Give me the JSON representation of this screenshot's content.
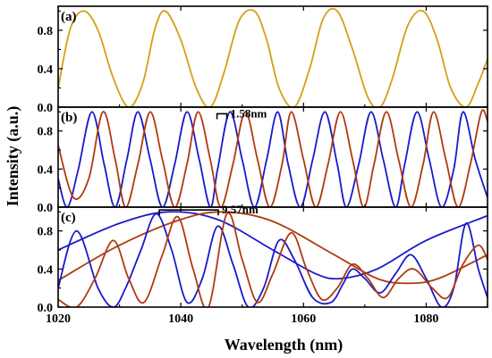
{
  "chart_data": {
    "type": "line",
    "xlabel": "Wavelength (nm)",
    "ylabel": "Intensity (a.u.)",
    "xlim": [
      1020,
      1090
    ],
    "x_ticks": [
      1020,
      1040,
      1060,
      1080
    ],
    "x_tick_labels": [
      "1020",
      "1040",
      "1060",
      "1080"
    ],
    "y_ticks": [
      0.0,
      0.4,
      0.8
    ],
    "y_tick_labels": [
      "0.0",
      "0.4",
      "0.8"
    ],
    "colors": {
      "gold": "#d4a017",
      "blue": "#1a1acc",
      "red": "#b03a10"
    },
    "panels": [
      {
        "label": "(a)",
        "ylim": [
          0,
          1.05
        ],
        "series": [
          {
            "color": "gold",
            "x": [
              1020,
              1022,
              1024.2,
              1026.5,
              1029,
              1031.5,
              1033.8,
              1035.8,
              1037.5,
              1040,
              1042.5,
              1044.8,
              1047,
              1049.5,
              1052,
              1054,
              1056,
              1058.5,
              1061,
              1063.2,
              1065.5,
              1068,
              1070.5,
              1072.5,
              1074.5,
              1077,
              1079.5,
              1081.8,
              1084,
              1086.5,
              1088.5,
              1090
            ],
            "y": [
              0.2,
              0.82,
              1.0,
              0.8,
              0.3,
              0.0,
              0.25,
              0.82,
              1.0,
              0.7,
              0.2,
              0.0,
              0.35,
              0.9,
              1.0,
              0.7,
              0.2,
              0.0,
              0.4,
              0.92,
              1.0,
              0.6,
              0.1,
              0.0,
              0.3,
              0.85,
              1.0,
              0.7,
              0.2,
              0.0,
              0.25,
              0.5
            ]
          }
        ]
      },
      {
        "label": "(b)",
        "ylim": [
          0,
          1.05
        ],
        "annotation": {
          "text": "1.58nm",
          "x1": 1045.9,
          "x2": 1047.5,
          "y": 0.98
        },
        "series": [
          {
            "color": "blue",
            "x": [
              1020,
              1021.5,
              1023.3,
              1025.5,
              1027.5,
              1029.3,
              1031.2,
              1033,
              1035,
              1037,
              1039,
              1041,
              1043,
              1044.8,
              1046,
              1048,
              1050,
              1052,
              1054,
              1055.8,
              1057.5,
              1059.5,
              1061.5,
              1063.5,
              1065.5,
              1067,
              1069,
              1071,
              1073,
              1075,
              1076.5,
              1078.5,
              1080.5,
              1082.5,
              1084.5,
              1086,
              1088,
              1090
            ],
            "y": [
              0.3,
              0.0,
              0.4,
              1.0,
              0.45,
              0.0,
              0.5,
              1.0,
              0.5,
              0.0,
              0.45,
              1.0,
              0.5,
              0.0,
              0.4,
              1.0,
              0.5,
              0.0,
              0.5,
              1.0,
              0.45,
              0.0,
              0.5,
              1.0,
              0.45,
              0.0,
              0.45,
              1.0,
              0.5,
              0.0,
              0.45,
              1.0,
              0.5,
              0.0,
              0.4,
              1.0,
              0.5,
              0.1
            ]
          },
          {
            "color": "red",
            "x": [
              1020,
              1022.5,
              1025,
              1027.3,
              1029.3,
              1031,
              1033,
              1035,
              1037,
              1039,
              1041,
              1042.8,
              1044.8,
              1046.5,
              1048.5,
              1050.5,
              1052.5,
              1054.5,
              1056.5,
              1058,
              1060,
              1062,
              1064,
              1066,
              1068,
              1069.8,
              1071.5,
              1073.5,
              1075.5,
              1077.5,
              1079.5,
              1081.2,
              1083.2,
              1085.2,
              1087.2,
              1089,
              1090
            ],
            "y": [
              0.65,
              0.1,
              0.3,
              1.0,
              0.5,
              0.0,
              0.45,
              1.0,
              0.5,
              0.0,
              0.45,
              1.0,
              0.5,
              0.0,
              0.45,
              1.0,
              0.5,
              0.0,
              0.45,
              1.0,
              0.5,
              0.0,
              0.45,
              1.0,
              0.5,
              0.0,
              0.45,
              1.0,
              0.5,
              0.0,
              0.45,
              1.0,
              0.5,
              0.0,
              0.45,
              1.0,
              0.9
            ]
          }
        ]
      },
      {
        "label": "(c)",
        "ylim": [
          0,
          1.05
        ],
        "annotation": {
          "text": "9.57nm",
          "x1": 1036.5,
          "x2": 1046.1,
          "y": 1.02
        },
        "series": [
          {
            "color": "blue",
            "x": [
              1020,
              1030,
              1038,
              1046,
              1055,
              1062,
              1066,
              1072,
              1080,
              1090
            ],
            "y": [
              0.6,
              0.88,
              1.0,
              0.92,
              0.6,
              0.35,
              0.3,
              0.4,
              0.7,
              0.96
            ]
          },
          {
            "color": "red",
            "x": [
              1020,
              1030,
              1040,
              1047,
              1055,
              1065,
              1072,
              1077,
              1082,
              1090
            ],
            "y": [
              0.28,
              0.65,
              0.92,
              1.0,
              0.9,
              0.55,
              0.3,
              0.25,
              0.3,
              0.55
            ]
          },
          {
            "color": "blue",
            "x": [
              1020,
              1023,
              1026.5,
              1029,
              1031,
              1033.5,
              1036,
              1038.5,
              1041,
              1043.5,
              1046,
              1048.5,
              1051,
              1053.5,
              1056,
              1058.5,
              1061.5,
              1064.5,
              1066.5,
              1068,
              1070,
              1072.5,
              1075,
              1077.5,
              1080,
              1082.5,
              1084.5,
              1086.5,
              1088.5,
              1090
            ],
            "y": [
              0.2,
              0.8,
              0.2,
              0.0,
              0.2,
              0.6,
              0.98,
              0.6,
              0.05,
              0.3,
              0.85,
              0.45,
              0.0,
              0.2,
              0.7,
              0.5,
              0.1,
              0.05,
              0.25,
              0.4,
              0.3,
              0.15,
              0.35,
              0.55,
              0.3,
              0.0,
              0.2,
              0.88,
              0.4,
              0.1
            ]
          },
          {
            "color": "red",
            "x": [
              1020,
              1023,
              1026,
              1029,
              1031.5,
              1034,
              1037,
              1039.5,
              1042,
              1044.5,
              1047.5,
              1050,
              1052.5,
              1055,
              1058,
              1060.5,
              1063,
              1065.5,
              1068,
              1070.5,
              1073,
              1075.5,
              1078,
              1081,
              1083.5,
              1086,
              1088.5,
              1090
            ],
            "y": [
              0.08,
              0.0,
              0.3,
              0.7,
              0.3,
              0.05,
              0.55,
              0.95,
              0.4,
              0.0,
              0.98,
              0.5,
              0.05,
              0.35,
              0.78,
              0.4,
              0.08,
              0.2,
              0.45,
              0.3,
              0.1,
              0.3,
              0.4,
              0.2,
              0.1,
              0.45,
              0.65,
              0.5
            ]
          }
        ]
      }
    ]
  }
}
